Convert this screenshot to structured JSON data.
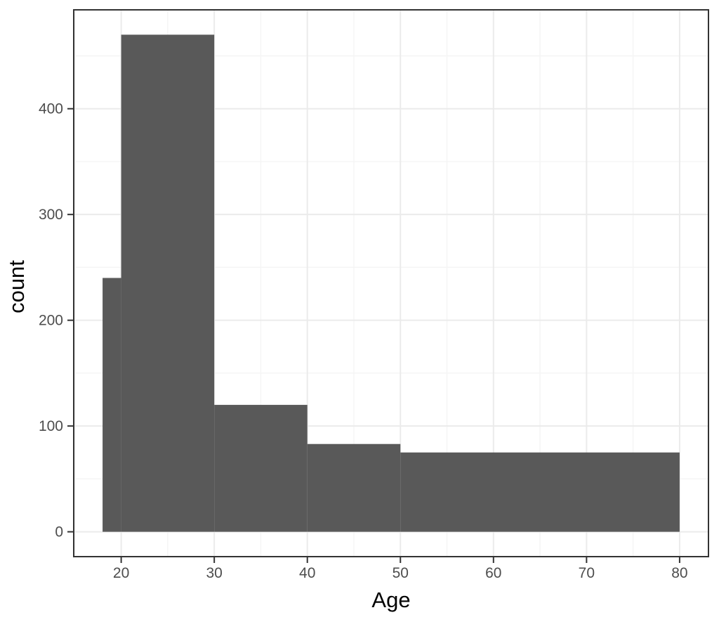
{
  "chart_data": {
    "type": "bar",
    "subtype": "histogram",
    "title": "",
    "xlabel": "Age",
    "ylabel": "count",
    "bins": [
      {
        "x0": 18,
        "x1": 20,
        "count": 240
      },
      {
        "x0": 20,
        "x1": 30,
        "count": 470
      },
      {
        "x0": 30,
        "x1": 40,
        "count": 120
      },
      {
        "x0": 40,
        "x1": 50,
        "count": 83
      },
      {
        "x0": 50,
        "x1": 80,
        "count": 75
      }
    ],
    "x_tick_labels": [
      "20",
      "30",
      "40",
      "50",
      "60",
      "70",
      "80"
    ],
    "x_ticks": [
      20,
      30,
      40,
      50,
      60,
      70,
      80
    ],
    "y_tick_labels": [
      "0",
      "100",
      "200",
      "300",
      "400"
    ],
    "y_ticks": [
      0,
      100,
      200,
      300,
      400
    ],
    "x_minor_ticks": [
      15,
      25,
      35,
      45,
      55,
      65,
      75
    ],
    "y_minor_ticks": [
      50,
      150,
      250,
      350,
      450
    ],
    "xlim": [
      14.9,
      83.1
    ],
    "ylim": [
      -23.5,
      493.5
    ],
    "grid": "on",
    "legend": "none",
    "colors": {
      "bar_fill": "#595959",
      "grid_major": "#EBEBEB",
      "grid_minor": "#F5F5F5",
      "panel_border": "#333333",
      "tick_mark": "#333333",
      "tick_label": "#4D4D4D",
      "axis_title": "#000000",
      "background": "#FFFFFF"
    }
  }
}
